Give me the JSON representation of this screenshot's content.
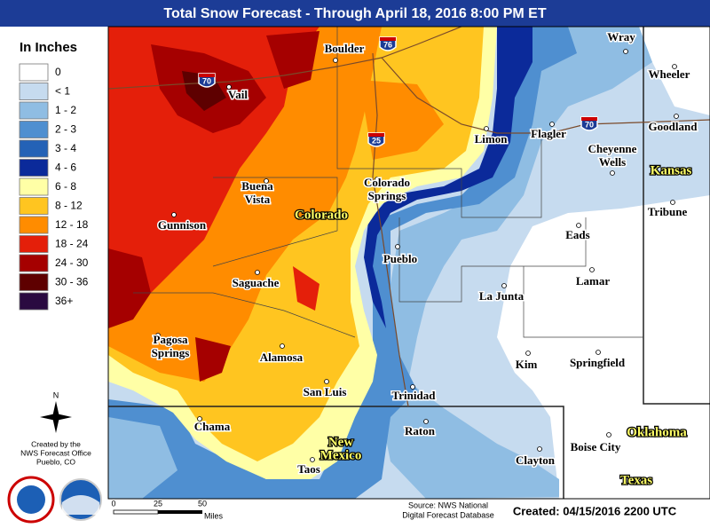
{
  "header": {
    "title": "Total Snow Forecast - Through April 18, 2016 8:00 PM ET"
  },
  "legend": {
    "title": "In Inches",
    "items": [
      {
        "label": "0",
        "color": "#ffffff"
      },
      {
        "label": "< 1",
        "color": "#c6dbef"
      },
      {
        "label": "1 - 2",
        "color": "#8fbde3"
      },
      {
        "label": "2 - 3",
        "color": "#4f8fd0"
      },
      {
        "label": "3 - 4",
        "color": "#2462b6"
      },
      {
        "label": "4 - 6",
        "color": "#0b2a9a"
      },
      {
        "label": "6 - 8",
        "color": "#ffffa6"
      },
      {
        "label": "8 - 12",
        "color": "#ffc520"
      },
      {
        "label": "12 - 18",
        "color": "#ff8c00"
      },
      {
        "label": "18 - 24",
        "color": "#e41f0a"
      },
      {
        "label": "24 - 30",
        "color": "#a50000"
      },
      {
        "label": "30 - 36",
        "color": "#5e0000"
      },
      {
        "label": "36+",
        "color": "#2a0a40"
      }
    ]
  },
  "cities": [
    {
      "label": [
        "Wray"
      ]
    },
    {
      "label": [
        "Wheeler"
      ]
    },
    {
      "label": [
        "Boulder"
      ]
    },
    {
      "label": [
        "Vail"
      ]
    },
    {
      "label": [
        "Limon"
      ]
    },
    {
      "label": [
        "Flagler"
      ]
    },
    {
      "label": [
        "Goodland"
      ]
    },
    {
      "label": [
        "Cheyenne",
        "Wells"
      ]
    },
    {
      "label": [
        "Buena",
        "Vista"
      ]
    },
    {
      "label": [
        "Colorado",
        "Springs"
      ]
    },
    {
      "label": [
        "Gunnison"
      ]
    },
    {
      "label": [
        "Tribune"
      ]
    },
    {
      "label": [
        "Eads"
      ]
    },
    {
      "label": [
        "Pueblo"
      ]
    },
    {
      "label": [
        "Lamar"
      ]
    },
    {
      "label": [
        "La Junta"
      ]
    },
    {
      "label": [
        "Saguache"
      ]
    },
    {
      "label": [
        "Pagosa",
        "Springs"
      ]
    },
    {
      "label": [
        "Alamosa"
      ]
    },
    {
      "label": [
        "Kim"
      ]
    },
    {
      "label": [
        "Springfield"
      ]
    },
    {
      "label": [
        "San Luis"
      ]
    },
    {
      "label": [
        "Trinidad"
      ]
    },
    {
      "label": [
        "Chama"
      ]
    },
    {
      "label": [
        "Raton"
      ]
    },
    {
      "label": [
        "Boise City"
      ]
    },
    {
      "label": [
        "Clayton"
      ]
    },
    {
      "label": [
        "Taos"
      ]
    }
  ],
  "states": [
    {
      "label": [
        "Colorado"
      ]
    },
    {
      "label": [
        "Kansas"
      ]
    },
    {
      "label": [
        "Oklahoma"
      ]
    },
    {
      "label": [
        "New",
        "Mexico"
      ]
    },
    {
      "label": [
        "Texas"
      ]
    }
  ],
  "interstates": [
    "76",
    "70",
    "25",
    "70"
  ],
  "compass": "N",
  "credit": [
    "Created by the",
    "NWS Forecast Office",
    "Pueblo, CO"
  ],
  "scale": {
    "ticks": [
      "0",
      "25",
      "50"
    ],
    "unit": "Miles"
  },
  "source": [
    "Source: NWS National",
    "Digital Forecast Database"
  ],
  "created": "Created: 04/15/2016 2200 UTC"
}
